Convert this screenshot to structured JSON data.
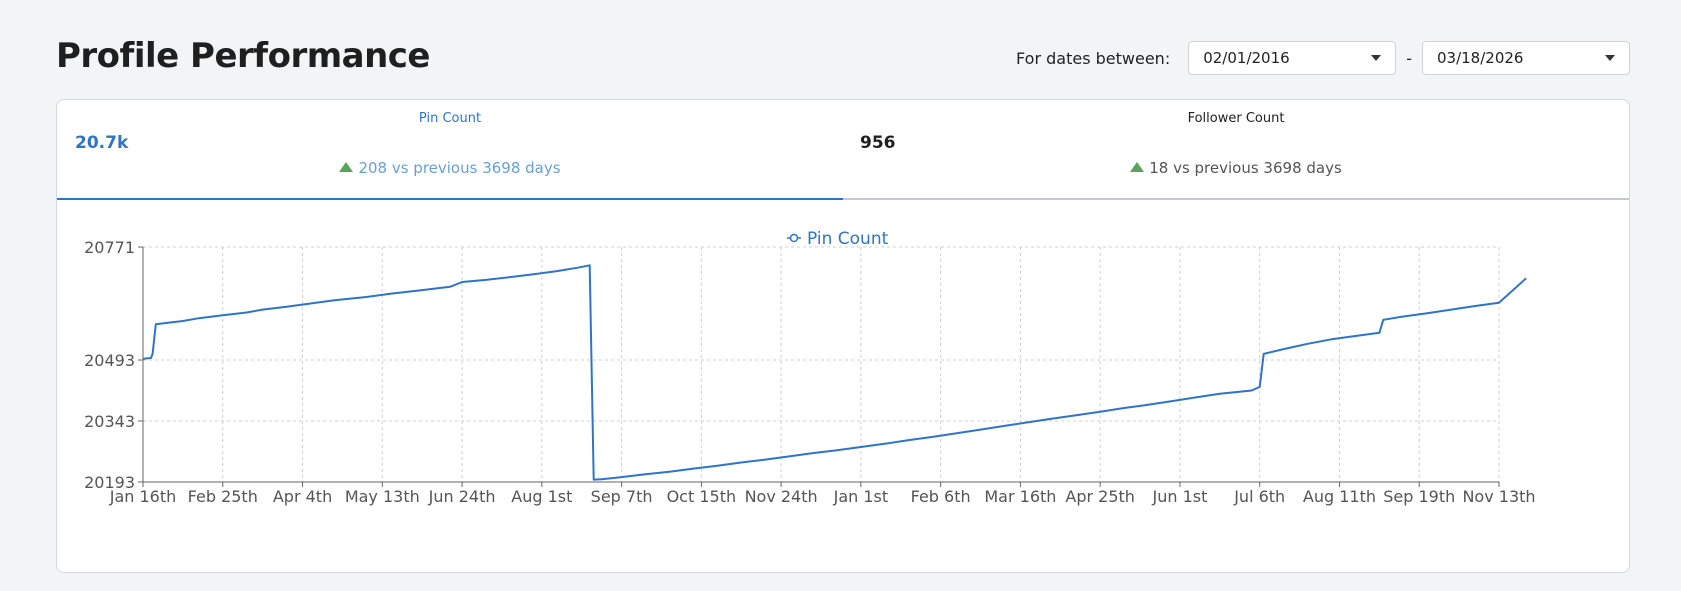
{
  "page_title": "Profile Performance",
  "date_filter": {
    "label": "For dates between:",
    "start": "02/01/2016",
    "separator": "-",
    "end": "03/18/2026"
  },
  "tabs": [
    {
      "title": "Pin Count",
      "value": "20.7k",
      "change": "208 vs previous 3698 days",
      "active": true
    },
    {
      "title": "Follower Count",
      "value": "956",
      "change": "18 vs previous 3698 days",
      "active": false
    }
  ],
  "colors": {
    "series": "#2f74c8",
    "increase": "#5aa35a",
    "grid": "#d0d0d0"
  },
  "chart_data": {
    "type": "line",
    "legend": "Pin Count",
    "legend_position": "top-center",
    "grid": true,
    "ylim": [
      20193,
      20771
    ],
    "y_ticks": [
      20193,
      20343,
      20493,
      20771
    ],
    "x_ticks": [
      "Jan 16th",
      "Feb 25th",
      "Apr 4th",
      "May 13th",
      "Jun 24th",
      "Aug 1st",
      "Sep 7th",
      "Oct 15th",
      "Nov 24th",
      "Jan 1st",
      "Feb 6th",
      "Mar 16th",
      "Apr 25th",
      "Jun 1st",
      "Jul 6th",
      "Aug 11th",
      "Sep 19th",
      "Nov 13th"
    ],
    "series": [
      {
        "name": "Pin Count",
        "points": [
          [
            0,
            20496
          ],
          [
            0.1,
            20498
          ],
          [
            0.12,
            20508
          ],
          [
            0.16,
            20581
          ],
          [
            0.25,
            20583
          ],
          [
            0.5,
            20589
          ],
          [
            0.7,
            20596
          ],
          [
            1.0,
            20603
          ],
          [
            1.3,
            20610
          ],
          [
            1.5,
            20617
          ],
          [
            1.8,
            20624
          ],
          [
            2.1,
            20632
          ],
          [
            2.4,
            20640
          ],
          [
            2.8,
            20648
          ],
          [
            3.1,
            20656
          ],
          [
            3.5,
            20665
          ],
          [
            3.85,
            20673
          ],
          [
            4.0,
            20685
          ],
          [
            4.3,
            20690
          ],
          [
            4.6,
            20697
          ],
          [
            4.9,
            20704
          ],
          [
            5.2,
            20712
          ],
          [
            5.45,
            20720
          ],
          [
            5.6,
            20726
          ],
          [
            5.65,
            20199
          ],
          [
            5.75,
            20200
          ],
          [
            6.0,
            20205
          ],
          [
            6.3,
            20212
          ],
          [
            6.6,
            20218
          ],
          [
            6.9,
            20226
          ],
          [
            7.2,
            20233
          ],
          [
            7.5,
            20241
          ],
          [
            7.8,
            20248
          ],
          [
            8.1,
            20256
          ],
          [
            8.4,
            20264
          ],
          [
            8.7,
            20271
          ],
          [
            9.0,
            20279
          ],
          [
            9.3,
            20287
          ],
          [
            9.6,
            20296
          ],
          [
            9.9,
            20304
          ],
          [
            10.2,
            20313
          ],
          [
            10.5,
            20322
          ],
          [
            10.8,
            20331
          ],
          [
            11.1,
            20340
          ],
          [
            11.4,
            20349
          ],
          [
            11.7,
            20357
          ],
          [
            12.0,
            20366
          ],
          [
            12.3,
            20375
          ],
          [
            12.6,
            20383
          ],
          [
            12.9,
            20392
          ],
          [
            13.2,
            20401
          ],
          [
            13.5,
            20410
          ],
          [
            13.9,
            20418
          ],
          [
            14.0,
            20427
          ],
          [
            14.05,
            20508
          ],
          [
            14.3,
            20520
          ],
          [
            14.6,
            20533
          ],
          [
            14.9,
            20544
          ],
          [
            15.2,
            20552
          ],
          [
            15.5,
            20560
          ],
          [
            15.55,
            20592
          ],
          [
            15.8,
            20600
          ],
          [
            16.1,
            20608
          ],
          [
            16.4,
            20617
          ],
          [
            16.7,
            20626
          ],
          [
            17.0,
            20634
          ],
          [
            17.34,
            20694
          ]
        ]
      }
    ]
  }
}
